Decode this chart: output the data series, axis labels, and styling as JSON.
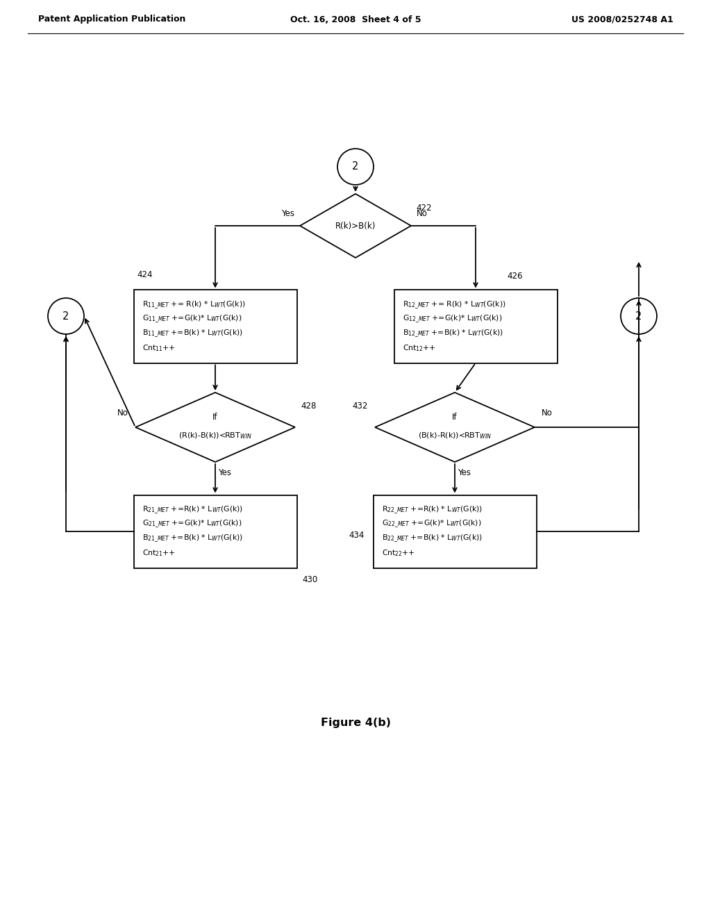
{
  "header_left": "Patent Application Publication",
  "header_mid": "Oct. 16, 2008  Sheet 4 of 5",
  "header_right": "US 2008/0252748 A1",
  "figure_caption": "Figure 4(b)",
  "bg_color": "#ffffff",
  "line_color": "#000000",
  "font_color": "#000000",
  "box11_line1": "R$_{11\\_MET}$ += R(k) * L$_{WT}$(G(k))",
  "box11_line2": "G$_{11\\_MET}$ +=G(k)* L$_{WT}$(G(k))",
  "box11_line3": "B$_{11\\_MET}$ +=B(k) * L$_{WT}$(G(k))",
  "box11_line4": "Cnt$_{11}$++",
  "box12_line1": "R$_{12\\_MET}$ += R(k) * L$_{WT}$(G(k))",
  "box12_line2": "G$_{12\\_MET}$ +=G(k)* L$_{WT}$(G(k))",
  "box12_line3": "B$_{12\\_MET}$ +=B(k) * L$_{WT}$(G(k))",
  "box12_line4": "Cnt$_{12}$++",
  "box21_line1": "R$_{21\\_MET}$ +=R(k) * L$_{WT}$(G(k))",
  "box21_line2": "G$_{21\\_MET}$ +=G(k)* L$_{WT}$(G(k))",
  "box21_line3": "B$_{21\\_MET}$ +=B(k) * L$_{WT}$(G(k))",
  "box21_line4": "Cnt$_{21}$++",
  "box22_line1": "R$_{22\\_MET}$ +=R(k) * L$_{WT}$(G(k))",
  "box22_line2": "G$_{22\\_MET}$ +=G(k)* L$_{WT}$(G(k))",
  "box22_line3": "B$_{22\\_MET}$ +=B(k) * L$_{WT}$(G(k))",
  "box22_line4": "Cnt$_{22}$++",
  "diamond_top_cond": "R(k)>B(k)",
  "diamond_left_line1": "If",
  "diamond_left_line2": "(R(k)-B(k))<RBT$_{WIN}$",
  "diamond_right_line1": "If",
  "diamond_right_line2": "(B(k)-R(k))<RBT$_{WIN}$",
  "label_422": "422",
  "label_424": "424",
  "label_426": "426",
  "label_428": "428",
  "label_430": "430",
  "label_432": "432",
  "label_434": "434",
  "yes": "Yes",
  "no": "No",
  "num_2": "2"
}
